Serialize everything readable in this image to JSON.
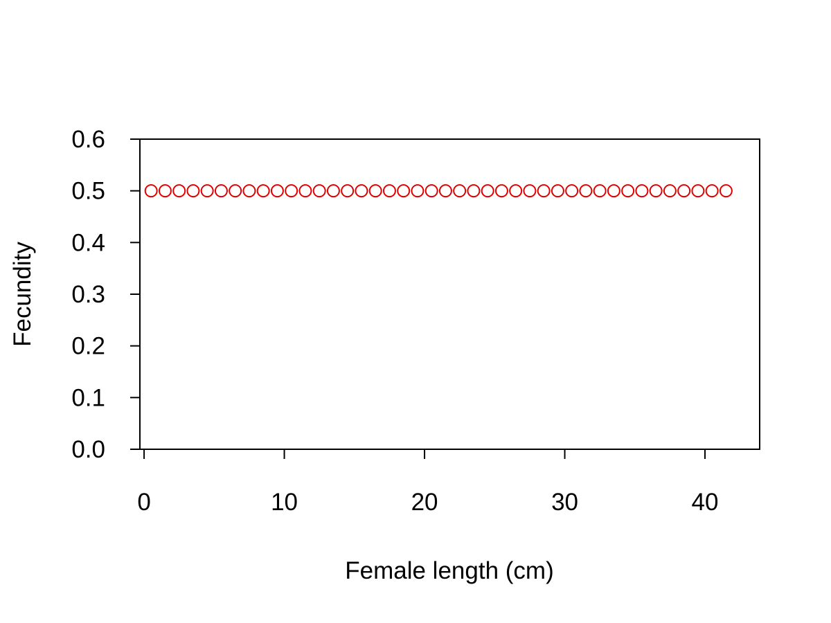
{
  "chart_data": {
    "type": "scatter",
    "title": "",
    "xlabel": "Female length (cm)",
    "ylabel": "Fecundity",
    "xlim": [
      -0.3,
      43.9
    ],
    "ylim": [
      0,
      0.6
    ],
    "x_ticks": [
      0,
      10,
      20,
      30,
      40
    ],
    "x_tick_labels": [
      "0",
      "10",
      "20",
      "30",
      "40"
    ],
    "y_ticks": [
      0.0,
      0.1,
      0.2,
      0.3,
      0.4,
      0.5,
      0.6
    ],
    "y_tick_labels": [
      "0.0",
      "0.1",
      "0.2",
      "0.3",
      "0.4",
      "0.5",
      "0.6"
    ],
    "grid": false,
    "marker": "open-circle",
    "marker_color": "#e00000",
    "series": [
      {
        "x": [
          0.5,
          1.5,
          2.5,
          3.5,
          4.5,
          5.5,
          6.5,
          7.5,
          8.5,
          9.5,
          10.5,
          11.5,
          12.5,
          13.5,
          14.5,
          15.5,
          16.5,
          17.5,
          18.5,
          19.5,
          20.5,
          21.5,
          22.5,
          23.5,
          24.5,
          25.5,
          26.5,
          27.5,
          28.5,
          29.5,
          30.5,
          31.5,
          32.5,
          33.5,
          34.5,
          35.5,
          36.5,
          37.5,
          38.5,
          39.5,
          40.5,
          41.5
        ],
        "y": [
          0.5,
          0.5,
          0.5,
          0.5,
          0.5,
          0.5,
          0.5,
          0.5,
          0.5,
          0.5,
          0.5,
          0.5,
          0.5,
          0.5,
          0.5,
          0.5,
          0.5,
          0.5,
          0.5,
          0.5,
          0.5,
          0.5,
          0.5,
          0.5,
          0.5,
          0.5,
          0.5,
          0.5,
          0.5,
          0.5,
          0.5,
          0.5,
          0.5,
          0.5,
          0.5,
          0.5,
          0.5,
          0.5,
          0.5,
          0.5,
          0.5,
          0.5
        ]
      }
    ]
  }
}
